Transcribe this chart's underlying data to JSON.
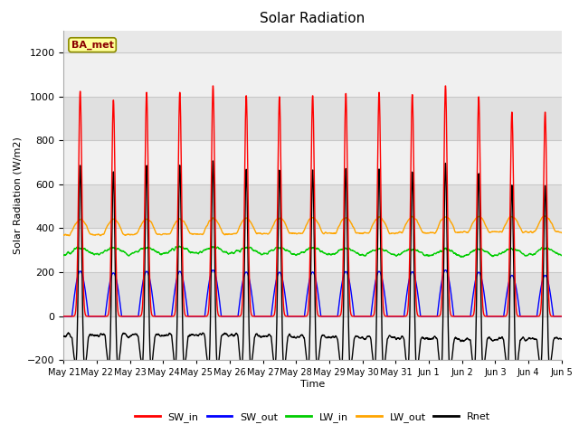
{
  "title": "Solar Radiation",
  "ylabel": "Solar Radiation (W/m2)",
  "xlabel": "Time",
  "ylim": [
    -200,
    1300
  ],
  "yticks": [
    -200,
    0,
    200,
    400,
    600,
    800,
    1000,
    1200
  ],
  "date_labels": [
    "May 21",
    "May 22",
    "May 23",
    "May 24",
    "May 25",
    "May 26",
    "May 27",
    "May 28",
    "May 29",
    "May 30",
    "May 31",
    "Jun 1",
    "Jun 2",
    "Jun 3",
    "Jun 4",
    "Jun 5"
  ],
  "colors": {
    "SW_in": "#ff0000",
    "SW_out": "#0000ff",
    "LW_in": "#00cc00",
    "LW_out": "#ffa500",
    "Rnet": "#000000"
  },
  "legend_label": "BA_met",
  "n_days": 15,
  "pts_per_day": 144,
  "sw_in_peaks": [
    1025,
    985,
    1020,
    1020,
    1050,
    1005,
    1000,
    1005,
    1015,
    1020,
    1010,
    1050,
    1000,
    930,
    930
  ]
}
